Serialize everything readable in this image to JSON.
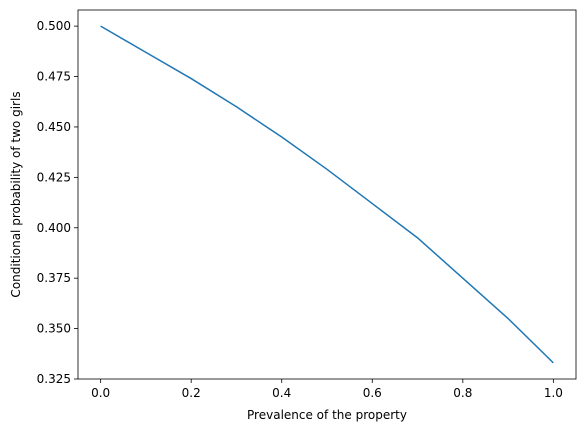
{
  "chart_data": {
    "type": "line",
    "title": "",
    "xlabel": "Prevalence of the property",
    "ylabel": "Conditional probability of two girls",
    "xlim": [
      -0.05,
      1.05
    ],
    "ylim": [
      0.325,
      0.508
    ],
    "xticks": [
      0.0,
      0.2,
      0.4,
      0.6,
      0.8,
      1.0
    ],
    "xtick_labels": [
      "0.0",
      "0.2",
      "0.4",
      "0.6",
      "0.8",
      "1.0"
    ],
    "yticks": [
      0.325,
      0.35,
      0.375,
      0.4,
      0.425,
      0.45,
      0.475,
      0.5
    ],
    "ytick_labels": [
      "0.325",
      "0.350",
      "0.375",
      "0.400",
      "0.425",
      "0.450",
      "0.475",
      "0.500"
    ],
    "grid": false,
    "legend": "none",
    "series": [
      {
        "color": "#1f77b4",
        "x": [
          0.0,
          0.1,
          0.2,
          0.3,
          0.4,
          0.5,
          0.6,
          0.7,
          0.8,
          0.9,
          1.0
        ],
        "y": [
          0.5,
          0.487,
          0.474,
          0.46,
          0.445,
          0.429,
          0.412,
          0.395,
          0.375,
          0.355,
          0.333
        ]
      }
    ]
  }
}
